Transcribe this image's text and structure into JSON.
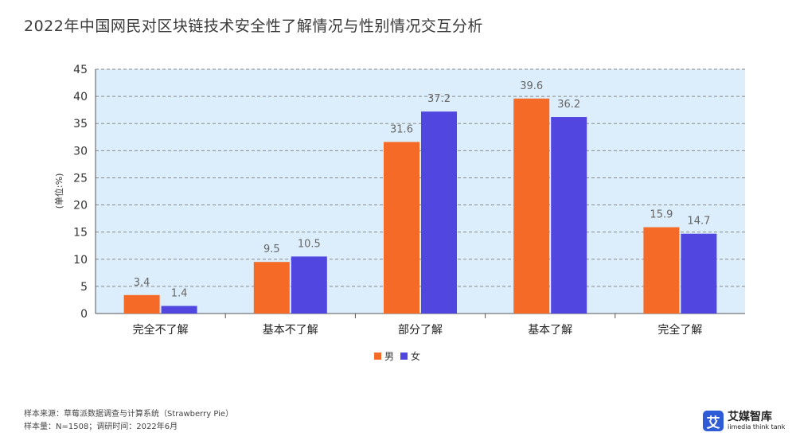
{
  "title": "2022年中国网民对区块链技术安全性了解情况与性别情况交互分析",
  "chart_data": {
    "type": "bar",
    "categories": [
      "完全不了解",
      "基本不了解",
      "部分了解",
      "基本了解",
      "完全了解"
    ],
    "series": [
      {
        "name": "男",
        "values": [
          3.4,
          9.5,
          31.6,
          39.6,
          15.9
        ],
        "color": "#f56a27"
      },
      {
        "name": "女",
        "values": [
          1.4,
          10.5,
          37.2,
          36.2,
          14.7
        ],
        "color": "#5147e0"
      }
    ],
    "ylabel": "(单位:%)",
    "ylim": [
      0,
      45
    ],
    "yticks": [
      0,
      5,
      10,
      15,
      20,
      25,
      30,
      35,
      40,
      45
    ],
    "grid": true,
    "plot_background": "#dceefb",
    "legend_position": "bottom"
  },
  "footer": {
    "source": "样本来源：草莓派数据调查与计算系统（Strawberry Pie）",
    "sample": "样本量：N=1508；调研时间：2022年6月"
  },
  "brand": {
    "logo_char": "艾",
    "name": "艾媒智库",
    "sub": "iimedia think tank"
  }
}
